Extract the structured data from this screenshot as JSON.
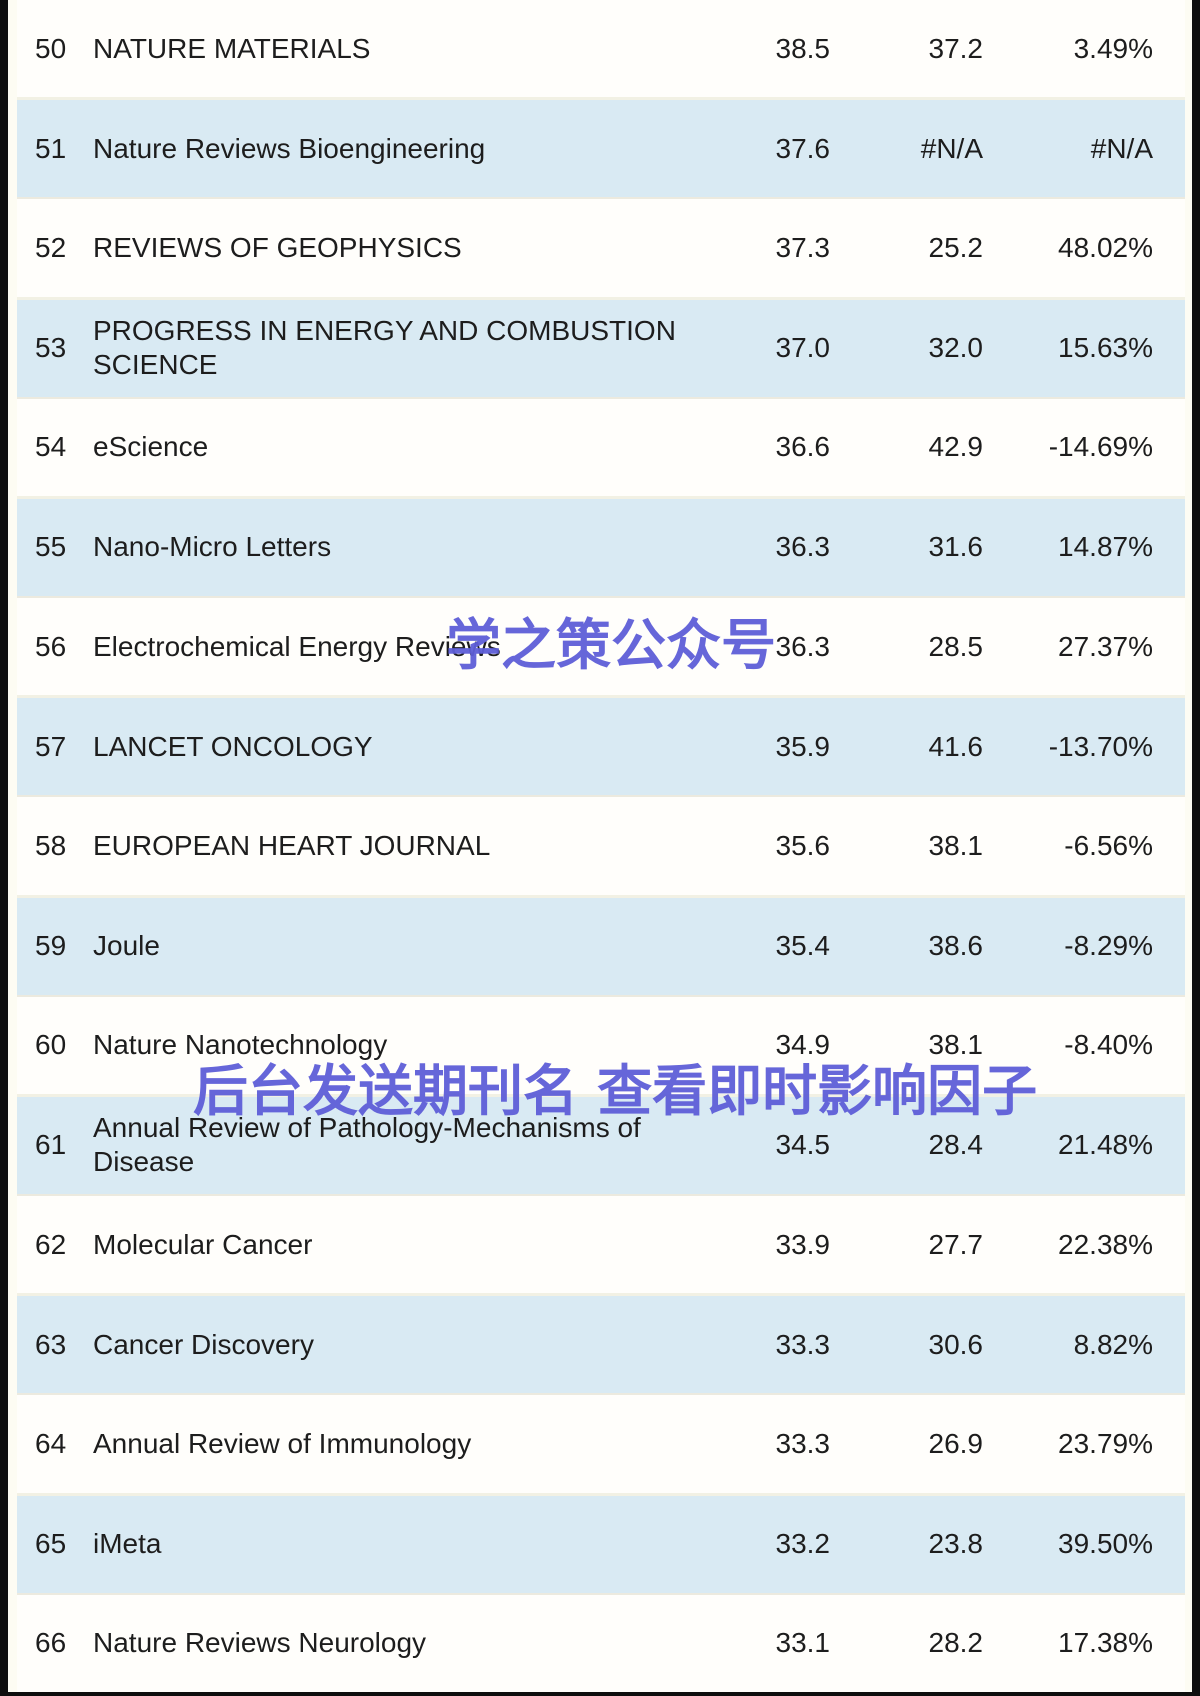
{
  "rows": [
    {
      "rank": "50",
      "journal": "NATURE MATERIALS",
      "if_new": "38.5",
      "if_old": "37.2",
      "change": "3.49%"
    },
    {
      "rank": "51",
      "journal": "Nature Reviews Bioengineering",
      "if_new": "37.6",
      "if_old": "#N/A",
      "change": "#N/A"
    },
    {
      "rank": "52",
      "journal": "REVIEWS OF GEOPHYSICS",
      "if_new": "37.3",
      "if_old": "25.2",
      "change": "48.02%"
    },
    {
      "rank": "53",
      "journal": "PROGRESS IN ENERGY AND COMBUSTION SCIENCE",
      "if_new": "37.0",
      "if_old": "32.0",
      "change": "15.63%"
    },
    {
      "rank": "54",
      "journal": "eScience",
      "if_new": "36.6",
      "if_old": "42.9",
      "change": "-14.69%"
    },
    {
      "rank": "55",
      "journal": "Nano-Micro Letters",
      "if_new": "36.3",
      "if_old": "31.6",
      "change": "14.87%"
    },
    {
      "rank": "56",
      "journal": "Electrochemical Energy Reviews",
      "if_new": "36.3",
      "if_old": "28.5",
      "change": "27.37%"
    },
    {
      "rank": "57",
      "journal": "LANCET ONCOLOGY",
      "if_new": "35.9",
      "if_old": "41.6",
      "change": "-13.70%"
    },
    {
      "rank": "58",
      "journal": "EUROPEAN HEART JOURNAL",
      "if_new": "35.6",
      "if_old": "38.1",
      "change": "-6.56%"
    },
    {
      "rank": "59",
      "journal": "Joule",
      "if_new": "35.4",
      "if_old": "38.6",
      "change": "-8.29%"
    },
    {
      "rank": "60",
      "journal": "Nature Nanotechnology",
      "if_new": "34.9",
      "if_old": "38.1",
      "change": "-8.40%"
    },
    {
      "rank": "61",
      "journal": "Annual Review of Pathology-Mechanisms of Disease",
      "if_new": "34.5",
      "if_old": "28.4",
      "change": "21.48%"
    },
    {
      "rank": "62",
      "journal": "Molecular Cancer",
      "if_new": "33.9",
      "if_old": "27.7",
      "change": "22.38%"
    },
    {
      "rank": "63",
      "journal": "Cancer Discovery",
      "if_new": "33.3",
      "if_old": "30.6",
      "change": "8.82%"
    },
    {
      "rank": "64",
      "journal": "Annual Review of Immunology",
      "if_new": "33.3",
      "if_old": "26.9",
      "change": "23.79%"
    },
    {
      "rank": "65",
      "journal": "iMeta",
      "if_new": "33.2",
      "if_old": "23.8",
      "change": "39.50%"
    },
    {
      "rank": "66",
      "journal": "Nature Reviews Neurology",
      "if_new": "33.1",
      "if_old": "28.2",
      "change": "17.38%"
    }
  ],
  "watermarks": {
    "w1": "学之策公众号",
    "w2": "后台发送期刊名 查看即时影响因子"
  },
  "colors": {
    "row_highlight": "#d9eaf3",
    "watermark": "#5e5ed8",
    "border": "#0e0e0e",
    "text": "#1d1d1d"
  }
}
